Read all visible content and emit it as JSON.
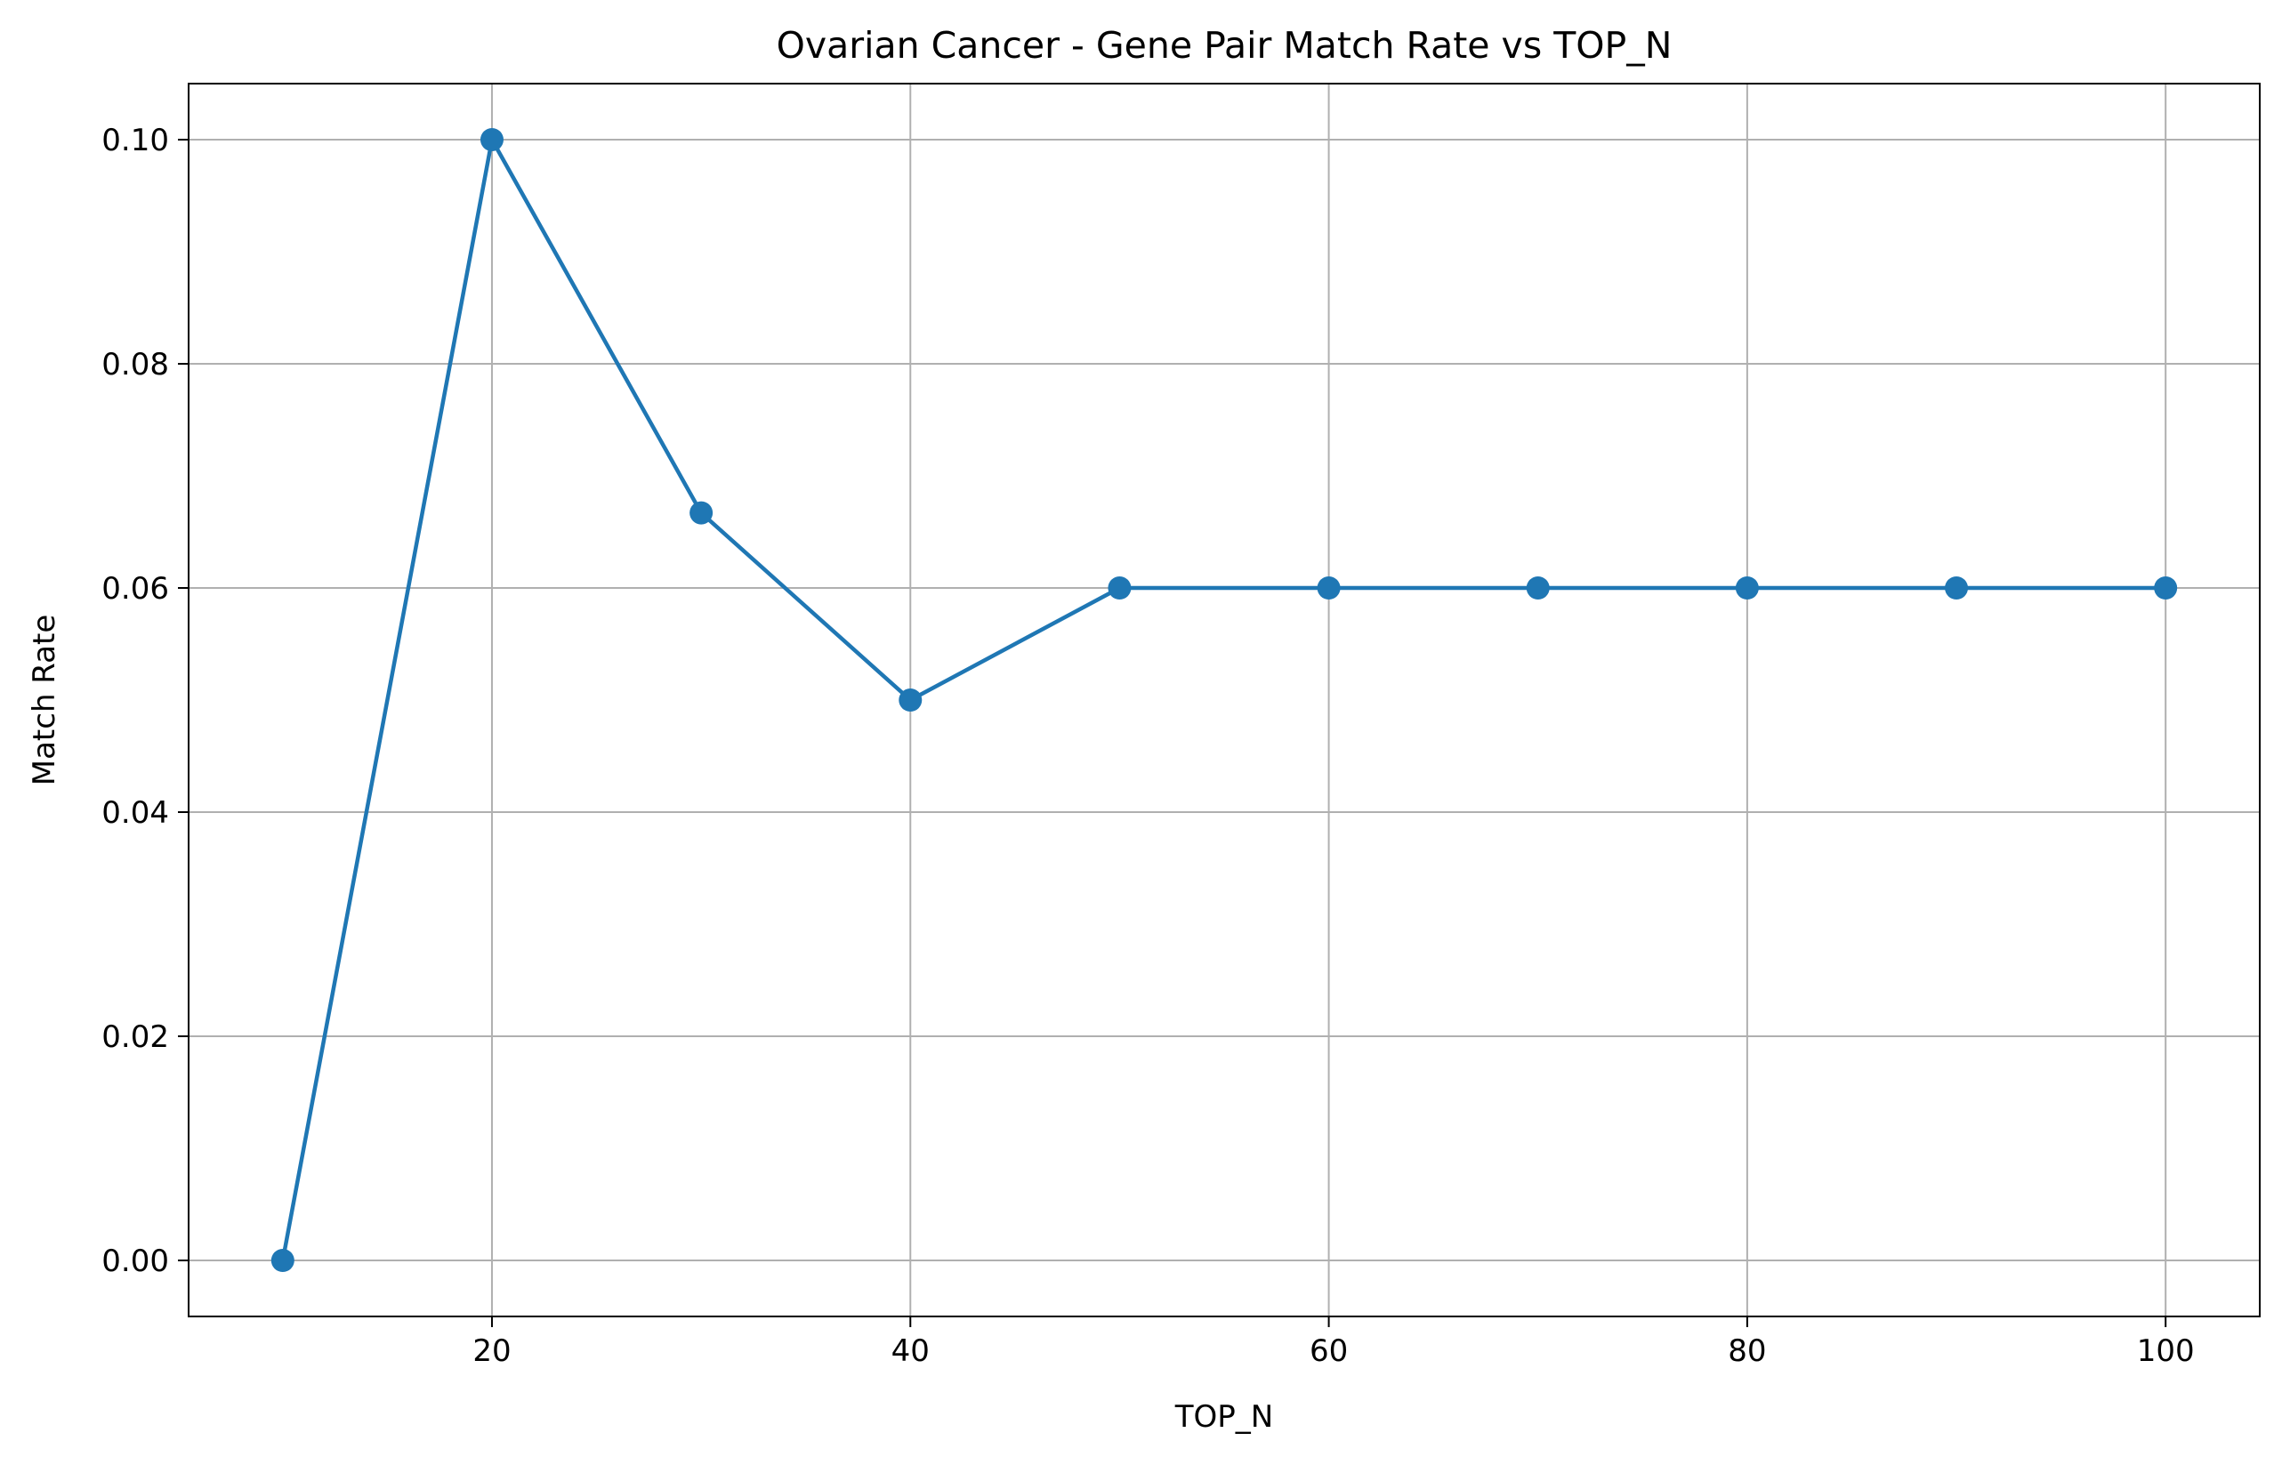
{
  "chart_data": {
    "type": "line",
    "title": "Ovarian Cancer - Gene Pair Match Rate vs TOP_N",
    "xlabel": "TOP_N",
    "ylabel": "Match Rate",
    "x": [
      10,
      20,
      30,
      40,
      50,
      60,
      70,
      80,
      90,
      100
    ],
    "series": [
      {
        "values": [
          0.0,
          0.1,
          0.0667,
          0.05,
          0.06,
          0.06,
          0.06,
          0.06,
          0.06,
          0.06
        ],
        "color": "#1f77b4",
        "marker": "circle"
      }
    ],
    "xlim": [
      5.5,
      104.5
    ],
    "ylim": [
      -0.005,
      0.105
    ],
    "xticks": [
      20,
      40,
      60,
      80,
      100
    ],
    "xtick_labels": [
      "20",
      "40",
      "60",
      "80",
      "100"
    ],
    "yticks": [
      0.0,
      0.02,
      0.04,
      0.06,
      0.08,
      0.1
    ],
    "ytick_labels": [
      "0.00",
      "0.02",
      "0.04",
      "0.06",
      "0.08",
      "0.10"
    ],
    "grid": true,
    "grid_color": "#b0b0b0",
    "legend": "none"
  }
}
